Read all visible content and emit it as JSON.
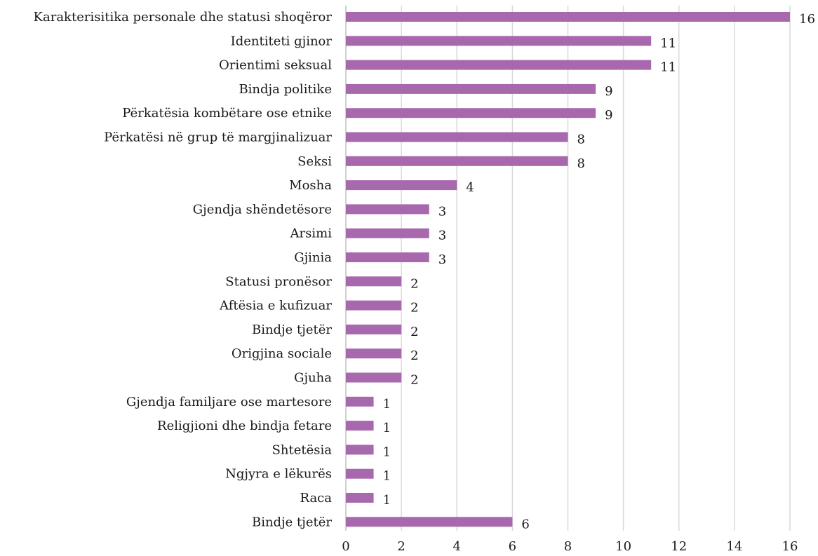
{
  "chart_data": {
    "type": "bar",
    "orientation": "horizontal",
    "categories": [
      "Karakterisitika personale dhe statusi shoqëror",
      "Identiteti gjinor",
      "Orientimi seksual",
      "Bindja politike",
      "Përkatësia kombëtare ose etnike",
      "Përkatësi në grup të margjinalizuar",
      "Seksi",
      "Mosha",
      "Gjendja shëndetësore",
      "Arsimi",
      "Gjinia",
      "Statusi pronësor",
      "Aftësia e kufizuar",
      "Bindje tjetër",
      "Origjina sociale",
      "Gjuha",
      "Gjendja familjare ose martesore",
      "Religjioni dhe bindja fetare",
      "Shtetësia",
      "Ngjyra e lëkurës",
      "Raca",
      "Bindje tjetër"
    ],
    "values": [
      16,
      11,
      11,
      9,
      9,
      8,
      8,
      4,
      3,
      3,
      3,
      2,
      2,
      2,
      2,
      2,
      1,
      1,
      1,
      1,
      1,
      6
    ],
    "value_labels": [
      "16",
      "11",
      "11",
      "9",
      "9",
      "8",
      "8",
      "4",
      "3",
      "3",
      "3",
      "2",
      "2",
      "2",
      "2",
      "2",
      "1",
      "1",
      "1",
      "1",
      "1",
      "6"
    ],
    "xlim": [
      0,
      16
    ],
    "xticks": [
      0,
      2,
      4,
      6,
      8,
      10,
      12,
      14,
      16
    ],
    "xtick_labels": [
      "0",
      "2",
      "4",
      "6",
      "8",
      "10",
      "12",
      "14",
      "16"
    ],
    "grid": "vertical",
    "legend": "none",
    "bar_color": "#a868ad",
    "title": "",
    "xlabel": "",
    "ylabel": ""
  }
}
